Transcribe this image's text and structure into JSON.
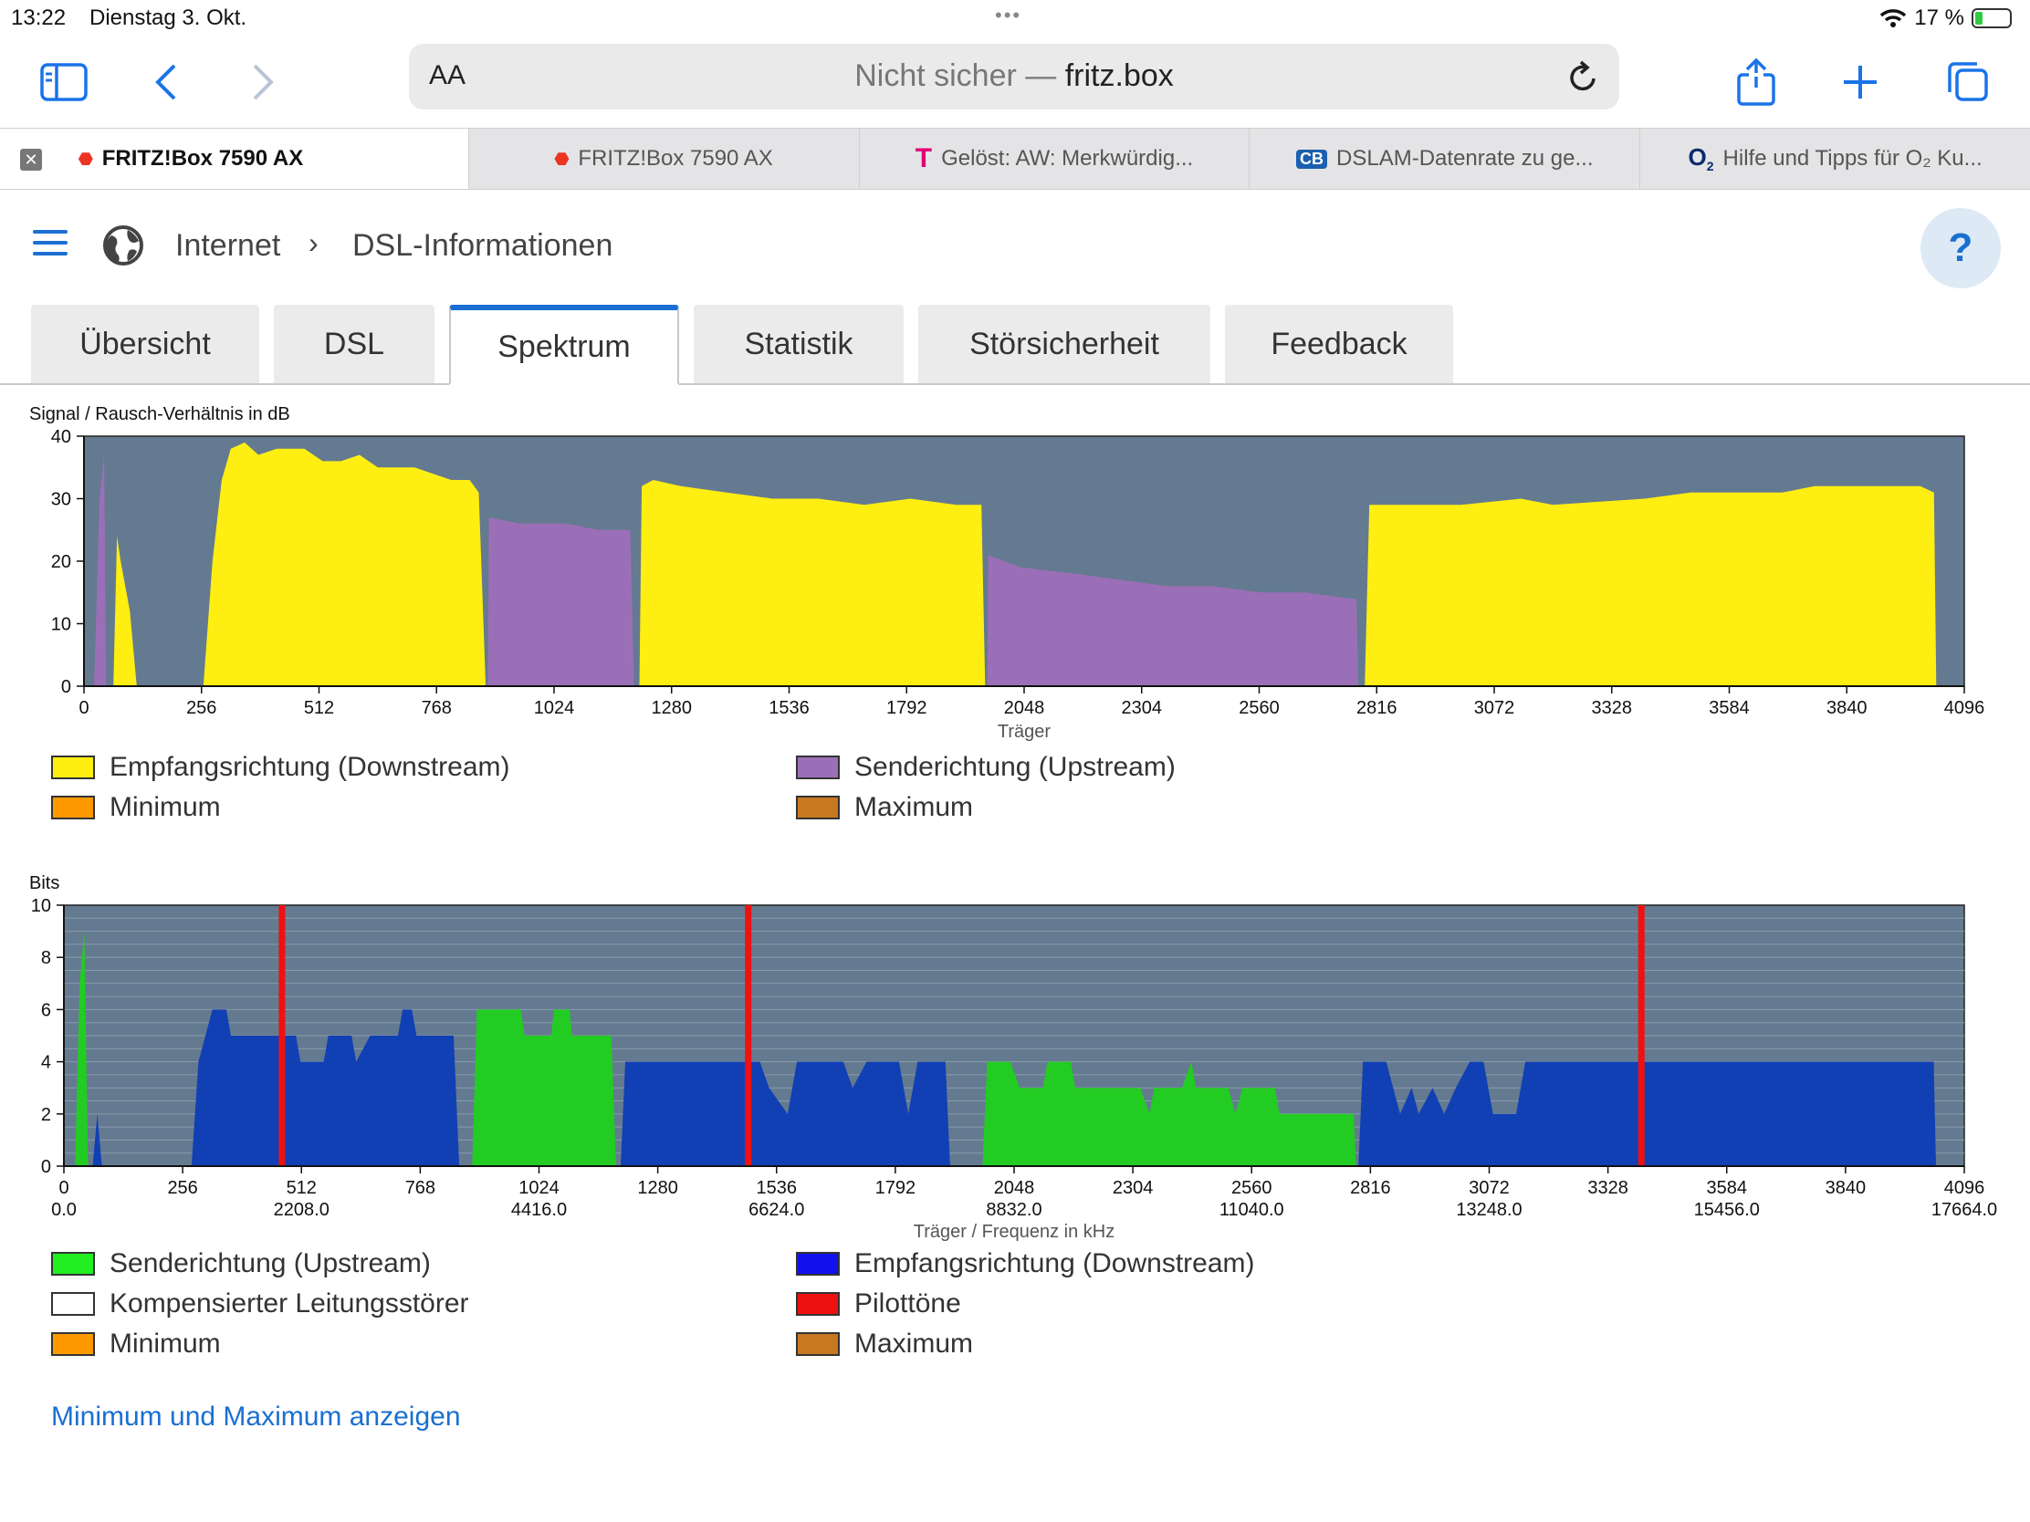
{
  "status": {
    "time": "13:22",
    "date": "Dienstag 3. Okt.",
    "battery": "17 %"
  },
  "browser": {
    "url_prefix": "Nicht sicher —",
    "url_host": "fritz.box",
    "reader_label": "AA",
    "tabs": [
      {
        "label": "FRITZ!Box 7590 AX"
      },
      {
        "label": "FRITZ!Box 7590 AX"
      },
      {
        "label": "Gelöst: AW: Merkwürdig..."
      },
      {
        "label": "DSLAM-Datenrate zu ge..."
      },
      {
        "label": "Hilfe und Tipps für O₂ Ku..."
      }
    ]
  },
  "page": {
    "breadcrumb_1": "Internet",
    "breadcrumb_2": "DSL-Informationen",
    "help": "?",
    "tabs": [
      "Übersicht",
      "DSL",
      "Spektrum",
      "Statistik",
      "Störsicherheit",
      "Feedback"
    ],
    "show_minmax_link": "Minimum und Maximum anzeigen"
  },
  "colors": {
    "plot_bg": "#647a90",
    "downstream_snr": "#ffee11",
    "upstream_snr": "#9b6fb8",
    "upstream_bits": "#22cc22",
    "downstream_bits": "#1140b4",
    "pilot": "#ee1111",
    "minimum": "#ff9900",
    "maximum": "#c87820"
  },
  "chart_data": [
    {
      "type": "area",
      "ylabel": "Signal / Rausch-Verhältnis in dB",
      "xlabel": "Träger",
      "xlim": [
        0,
        4096
      ],
      "ylim": [
        0,
        40
      ],
      "xticks": [
        "0",
        "256",
        "512",
        "768",
        "1024",
        "1280",
        "1536",
        "1792",
        "2048",
        "2304",
        "2560",
        "2816",
        "3072",
        "3328",
        "3584",
        "3840",
        "4096"
      ],
      "yticks": [
        "0",
        "10",
        "20",
        "30",
        "40"
      ],
      "series": [
        {
          "name": "Empfangsrichtung (Downstream)",
          "color": "#ffee11",
          "segments": [
            [
              [
                64,
                0
              ],
              [
                72,
                24
              ],
              [
                80,
                20
              ],
              [
                100,
                12
              ],
              [
                115,
                0
              ]
            ],
            [
              [
                260,
                0
              ],
              [
                280,
                20
              ],
              [
                300,
                33
              ],
              [
                320,
                38
              ],
              [
                350,
                39
              ],
              [
                380,
                37
              ],
              [
                420,
                38
              ],
              [
                480,
                38
              ],
              [
                520,
                36
              ],
              [
                560,
                36
              ],
              [
                600,
                37
              ],
              [
                640,
                35
              ],
              [
                680,
                35
              ],
              [
                720,
                35
              ],
              [
                760,
                34
              ],
              [
                800,
                33
              ],
              [
                840,
                33
              ],
              [
                860,
                31
              ],
              [
                875,
                0
              ]
            ],
            [
              [
                1210,
                0
              ],
              [
                1215,
                32
              ],
              [
                1240,
                33
              ],
              [
                1300,
                32
              ],
              [
                1400,
                31
              ],
              [
                1500,
                30
              ],
              [
                1600,
                30
              ],
              [
                1700,
                29
              ],
              [
                1800,
                30
              ],
              [
                1900,
                29
              ],
              [
                1955,
                29
              ],
              [
                1963,
                0
              ]
            ],
            [
              [
                2790,
                0
              ],
              [
                2800,
                29
              ],
              [
                3000,
                29
              ],
              [
                3130,
                30
              ],
              [
                3200,
                29
              ],
              [
                3400,
                30
              ],
              [
                3500,
                31
              ],
              [
                3700,
                31
              ],
              [
                3770,
                32
              ],
              [
                4000,
                32
              ],
              [
                4030,
                31
              ],
              [
                4035,
                0
              ]
            ]
          ]
        },
        {
          "name": "Senderichtung (Upstream)",
          "color": "#9b6fb8",
          "segments": [
            [
              [
                22,
                0
              ],
              [
                34,
                30
              ],
              [
                44,
                37
              ],
              [
                48,
                0
              ]
            ],
            [
              [
                880,
                0
              ],
              [
                882,
                27
              ],
              [
                950,
                26
              ],
              [
                1050,
                26
              ],
              [
                1120,
                25
              ],
              [
                1190,
                25
              ],
              [
                1198,
                0
              ]
            ],
            [
              [
                1968,
                0
              ],
              [
                1970,
                21
              ],
              [
                2040,
                19
              ],
              [
                2160,
                18
              ],
              [
                2260,
                17
              ],
              [
                2360,
                16
              ],
              [
                2460,
                16
              ],
              [
                2560,
                15
              ],
              [
                2660,
                15
              ],
              [
                2760,
                14
              ],
              [
                2772,
                14
              ],
              [
                2776,
                0
              ]
            ]
          ]
        }
      ],
      "legend": [
        {
          "label": "Empfangsrichtung (Downstream)",
          "color": "#ffee11"
        },
        {
          "label": "Senderichtung (Upstream)",
          "color": "#9b6fb8"
        },
        {
          "label": "Minimum",
          "color": "#ff9900"
        },
        {
          "label": "Maximum",
          "color": "#c87820"
        }
      ]
    },
    {
      "type": "area",
      "ylabel": "Bits",
      "xlabel": "Träger / Frequenz in kHz",
      "xlim": [
        0,
        4096
      ],
      "ylim": [
        0,
        10
      ],
      "xticks": [
        "0",
        "256",
        "512",
        "768",
        "1024",
        "1280",
        "1536",
        "1792",
        "2048",
        "2304",
        "2560",
        "2816",
        "3072",
        "3328",
        "3584",
        "3840",
        "4096"
      ],
      "xticks_freq": [
        "0.0",
        "",
        "2208.0",
        "",
        "4416.0",
        "",
        "6624.0",
        "",
        "8832.0",
        "",
        "11040.0",
        "",
        "13248.0",
        "",
        "15456.0",
        "",
        "17664.0"
      ],
      "yticks": [
        "0",
        "2",
        "4",
        "6",
        "8",
        "10"
      ],
      "series": [
        {
          "name": "Senderichtung (Upstream)",
          "color": "#22cc22",
          "segments": [
            [
              [
                24,
                0
              ],
              [
                34,
                7
              ],
              [
                44,
                9
              ],
              [
                52,
                0
              ]
            ],
            [
              [
                880,
                0
              ],
              [
                890,
                6
              ],
              [
                985,
                6
              ],
              [
                993,
                5
              ],
              [
                1050,
                5
              ],
              [
                1057,
                6
              ],
              [
                1090,
                6
              ],
              [
                1095,
                5
              ],
              [
                1180,
                5
              ],
              [
                1190,
                0
              ]
            ],
            [
              [
                1980,
                0
              ],
              [
                1990,
                4
              ],
              [
                2040,
                4
              ],
              [
                2060,
                3
              ],
              [
                2110,
                3
              ],
              [
                2120,
                4
              ],
              [
                2170,
                4
              ],
              [
                2180,
                3
              ],
              [
                2320,
                3
              ],
              [
                2340,
                2
              ],
              [
                2350,
                3
              ],
              [
                2410,
                3
              ],
              [
                2430,
                4
              ],
              [
                2440,
                3
              ],
              [
                2510,
                3
              ],
              [
                2525,
                2
              ],
              [
                2540,
                3
              ],
              [
                2610,
                3
              ],
              [
                2620,
                2
              ],
              [
                2780,
                2
              ],
              [
                2785,
                0
              ]
            ]
          ]
        },
        {
          "name": "Empfangsrichtung (Downstream)",
          "color": "#1140b4",
          "segments": [
            [
              [
                62,
                0
              ],
              [
                72,
                2
              ],
              [
                82,
                0
              ]
            ],
            [
              [
                275,
                0
              ],
              [
                290,
                4
              ],
              [
                320,
                6
              ],
              [
                350,
                6
              ],
              [
                360,
                5
              ],
              [
                500,
                5
              ],
              [
                510,
                4
              ],
              [
                560,
                4
              ],
              [
                570,
                5
              ],
              [
                620,
                5
              ],
              [
                630,
                4
              ],
              [
                660,
                5
              ],
              [
                720,
                5
              ],
              [
                730,
                6
              ],
              [
                750,
                6
              ],
              [
                760,
                5
              ],
              [
                840,
                5
              ],
              [
                852,
                0
              ]
            ],
            [
              [
                1200,
                0
              ],
              [
                1210,
                4
              ],
              [
                1500,
                4
              ],
              [
                1520,
                3
              ],
              [
                1560,
                2
              ],
              [
                1580,
                4
              ],
              [
                1680,
                4
              ],
              [
                1700,
                3
              ],
              [
                1730,
                4
              ],
              [
                1800,
                4
              ],
              [
                1820,
                2
              ],
              [
                1840,
                4
              ],
              [
                1900,
                4
              ],
              [
                1910,
                0
              ]
            ],
            [
              [
                2790,
                0
              ],
              [
                2800,
                4
              ],
              [
                2850,
                4
              ],
              [
                2880,
                2
              ],
              [
                2905,
                3
              ],
              [
                2920,
                2
              ],
              [
                2950,
                3
              ],
              [
                2975,
                2
              ],
              [
                3000,
                3
              ],
              [
                3030,
                4
              ],
              [
                3060,
                4
              ],
              [
                3080,
                2
              ],
              [
                3130,
                2
              ],
              [
                3150,
                4
              ],
              [
                4030,
                4
              ],
              [
                4035,
                0
              ]
            ]
          ]
        }
      ],
      "pilot_tones": [
        470,
        1475,
        3400
      ],
      "legend": [
        {
          "label": "Senderichtung (Upstream)",
          "color": "#22cc22"
        },
        {
          "label": "Empfangsrichtung (Downstream)",
          "color": "#1140b4"
        },
        {
          "label": "Kompensierter Leitungsstörer",
          "color": "#ffffff"
        },
        {
          "label": "Pilottöne",
          "color": "#ee1111"
        },
        {
          "label": "Minimum",
          "color": "#ff9900"
        },
        {
          "label": "Maximum",
          "color": "#c87820"
        }
      ]
    }
  ]
}
